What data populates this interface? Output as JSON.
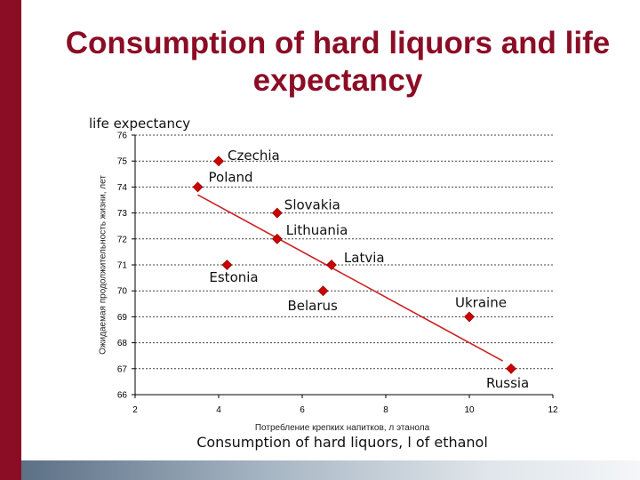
{
  "title": "Consumption of hard liquors and life expectancy",
  "y_caption": "life expectancy",
  "y_sub_label": "Ожидаемая продолжительность жизни, лет",
  "x_sub_label": "Потребление крепких напитков, л этанола",
  "x_caption": "Consumption of hard liquors, l of ethanol",
  "colors": {
    "accent": "#8b0d25",
    "marker": "#cc0000",
    "trend": "#cc2222"
  },
  "chart_data": {
    "type": "scatter",
    "xlim": [
      2,
      12
    ],
    "ylim": [
      66,
      76
    ],
    "x_ticks": [
      2,
      4,
      6,
      8,
      10,
      12
    ],
    "y_ticks": [
      66,
      67,
      68,
      69,
      70,
      71,
      72,
      73,
      74,
      75,
      76
    ],
    "grid": "horizontal dashed",
    "points": [
      {
        "label": "Czechia",
        "x": 4.0,
        "y": 75.0
      },
      {
        "label": "Poland",
        "x": 3.5,
        "y": 74.0
      },
      {
        "label": "Slovakia",
        "x": 5.4,
        "y": 73.0
      },
      {
        "label": "Lithuania",
        "x": 5.4,
        "y": 72.0
      },
      {
        "label": "Estonia",
        "x": 4.2,
        "y": 71.0
      },
      {
        "label": "Latvia",
        "x": 6.7,
        "y": 71.0
      },
      {
        "label": "Belarus",
        "x": 6.5,
        "y": 70.0
      },
      {
        "label": "Ukraine",
        "x": 10.0,
        "y": 69.0
      },
      {
        "label": "Russia",
        "x": 11.0,
        "y": 67.0
      }
    ],
    "trendline": {
      "x": [
        3.5,
        10.8
      ],
      "y": [
        73.7,
        67.3
      ]
    }
  }
}
